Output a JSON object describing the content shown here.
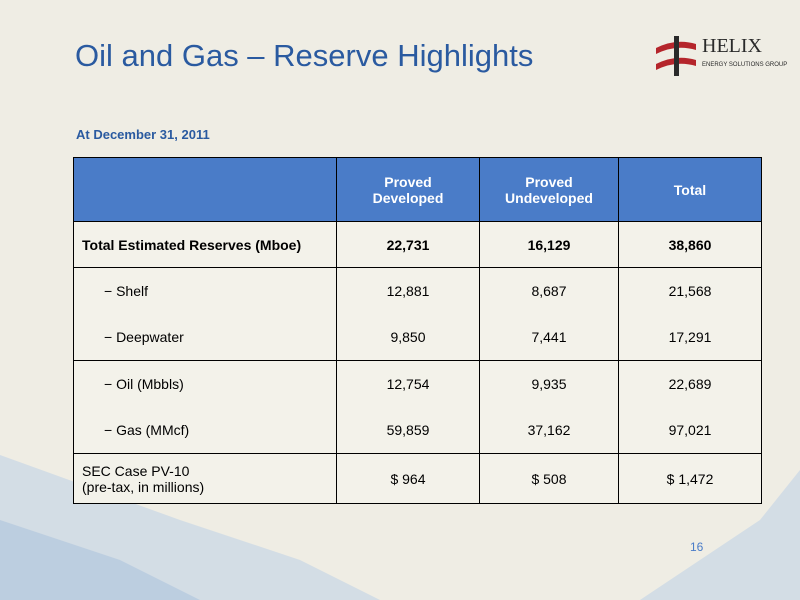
{
  "title": "Oil and Gas – Reserve Highlights",
  "logo": {
    "name": "HELIX",
    "tagline": "ENERGY SOLUTIONS GROUP"
  },
  "subtitle": "At December 31, 2011",
  "table": {
    "header": [
      "Proved\nDeveloped",
      "Proved\nUndeveloped",
      "Total"
    ],
    "groups": [
      [
        [
          "Total Estimated Reserves (Mboe)",
          "22,731",
          "16,129",
          "38,860"
        ]
      ],
      [
        [
          "−  Shelf",
          "12,881",
          "8,687",
          "21,568"
        ],
        [
          "−  Deepwater",
          "9,850",
          "7,441",
          "17,291"
        ]
      ],
      [
        [
          "−  Oil (Mbbls)",
          "12,754",
          "9,935",
          "22,689"
        ],
        [
          "−  Gas (MMcf)",
          "59,859",
          "37,162",
          "97,021"
        ]
      ],
      [
        [
          "SEC Case PV-10\n(pre-tax, in millions)",
          "$ 964",
          "$ 508",
          "$ 1,472"
        ]
      ]
    ]
  },
  "page_number": "16"
}
